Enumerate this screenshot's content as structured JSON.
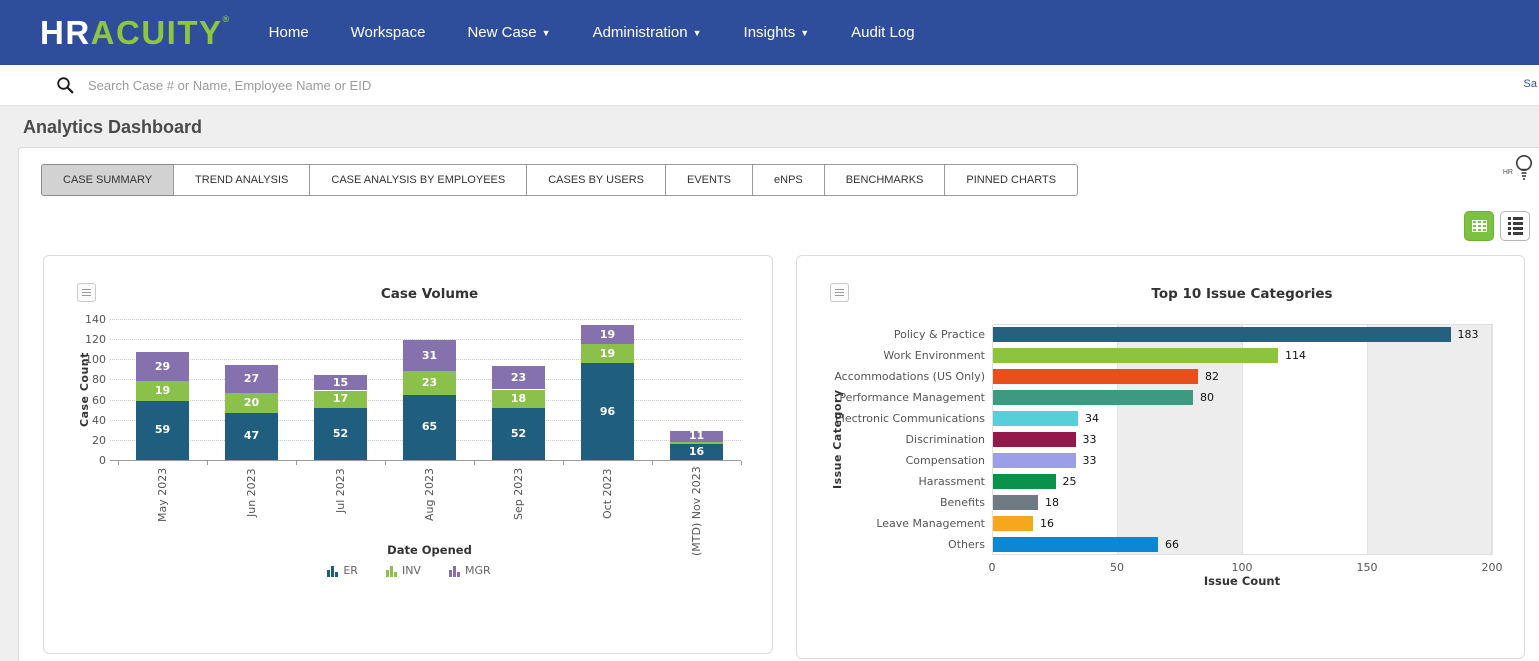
{
  "navbar": {
    "logo": {
      "hr": "HR",
      "acuity": "ACUITY",
      "mark": "®"
    },
    "items": [
      {
        "label": "Home",
        "dropdown": false
      },
      {
        "label": "Workspace",
        "dropdown": false
      },
      {
        "label": "New Case",
        "dropdown": true
      },
      {
        "label": "Administration",
        "dropdown": true
      },
      {
        "label": "Insights",
        "dropdown": true
      },
      {
        "label": "Audit Log",
        "dropdown": false
      }
    ],
    "caret": "▼"
  },
  "search": {
    "placeholder": "Search Case # or Name, Employee Name or EID",
    "right_text": "Sa"
  },
  "page": {
    "title": "Analytics Dashboard"
  },
  "tabs": [
    {
      "label": "CASE SUMMARY",
      "active": true
    },
    {
      "label": "TREND ANALYSIS",
      "active": false
    },
    {
      "label": "CASE ANALYSIS BY EMPLOYEES",
      "active": false
    },
    {
      "label": "CASES BY USERS",
      "active": false
    },
    {
      "label": "EVENTS",
      "active": false
    },
    {
      "label": "eNPS",
      "active": false
    },
    {
      "label": "BENCHMARKS",
      "active": false
    },
    {
      "label": "PINNED CHARTS",
      "active": false
    }
  ],
  "toolbar": {
    "help_label": "HR"
  },
  "icons": {
    "search-icon": "magnifier",
    "help-icon": "lightbulb",
    "grid-view-icon": "grid",
    "list-view-icon": "list",
    "chart-menu-icon": "hamburger-lines",
    "caret-down-icon": "▼",
    "legend-bars-icon": "mini-bar-chart"
  },
  "colors": {
    "navbar": "#2e4d9b",
    "logo_green": "#8dc63f",
    "active_tab_bg": "#d2d2d2",
    "grid_button_green": "#7dc142"
  },
  "chart_data": [
    {
      "type": "bar",
      "stacked": true,
      "title": "Case Volume",
      "xlabel": "Date Opened",
      "ylabel": "Case Count",
      "ylim": [
        0,
        140
      ],
      "yticks": [
        0,
        20,
        40,
        60,
        80,
        100,
        120,
        140
      ],
      "grid": "dotted-horizontal",
      "legend_position": "bottom",
      "categories": [
        "May 2023",
        "Jun 2023",
        "Jul 2023",
        "Aug 2023",
        "Sep 2023",
        "Oct 2023",
        "(MTD) Nov 2023"
      ],
      "series": [
        {
          "name": "ER",
          "color": "#1f5e7e",
          "values": [
            59,
            47,
            52,
            65,
            52,
            96,
            16
          ],
          "labels": [
            "59",
            "47",
            "52",
            "65",
            "52",
            "96",
            "16"
          ]
        },
        {
          "name": "INV",
          "color": "#8bc04a",
          "values": [
            19,
            20,
            17,
            23,
            18,
            19,
            2
          ],
          "labels": [
            "19",
            "20",
            "17",
            "23",
            "18",
            "19",
            ""
          ]
        },
        {
          "name": "MGR",
          "color": "#8571ad",
          "values": [
            29,
            27,
            15,
            31,
            23,
            19,
            11
          ],
          "labels": [
            "29",
            "27",
            "15",
            "31",
            "23",
            "19",
            "11"
          ]
        }
      ]
    },
    {
      "type": "bar",
      "orientation": "horizontal",
      "title": "Top 10 Issue Categories",
      "xlabel": "Issue Count",
      "ylabel": "Issue Category",
      "xlim": [
        0,
        200
      ],
      "xticks": [
        0,
        50,
        100,
        150,
        200
      ],
      "plot_bands_gray": [
        [
          50,
          100
        ],
        [
          150,
          200
        ]
      ],
      "categories": [
        "Policy & Practice",
        "Work Environment",
        "Accommodations (US Only)",
        "Performance Management",
        "Electronic Communications",
        "Discrimination",
        "Compensation",
        "Harassment",
        "Benefits",
        "Leave Management",
        "Others"
      ],
      "values": [
        183,
        114,
        82,
        80,
        34,
        33,
        33,
        25,
        18,
        16,
        66
      ],
      "colors": [
        "#26607f",
        "#8cc43f",
        "#e94e1d",
        "#3d9a80",
        "#57cfd8",
        "#93194a",
        "#9c9ee8",
        "#0b9149",
        "#6f7a82",
        "#f5a81c",
        "#0d87d1"
      ]
    }
  ]
}
